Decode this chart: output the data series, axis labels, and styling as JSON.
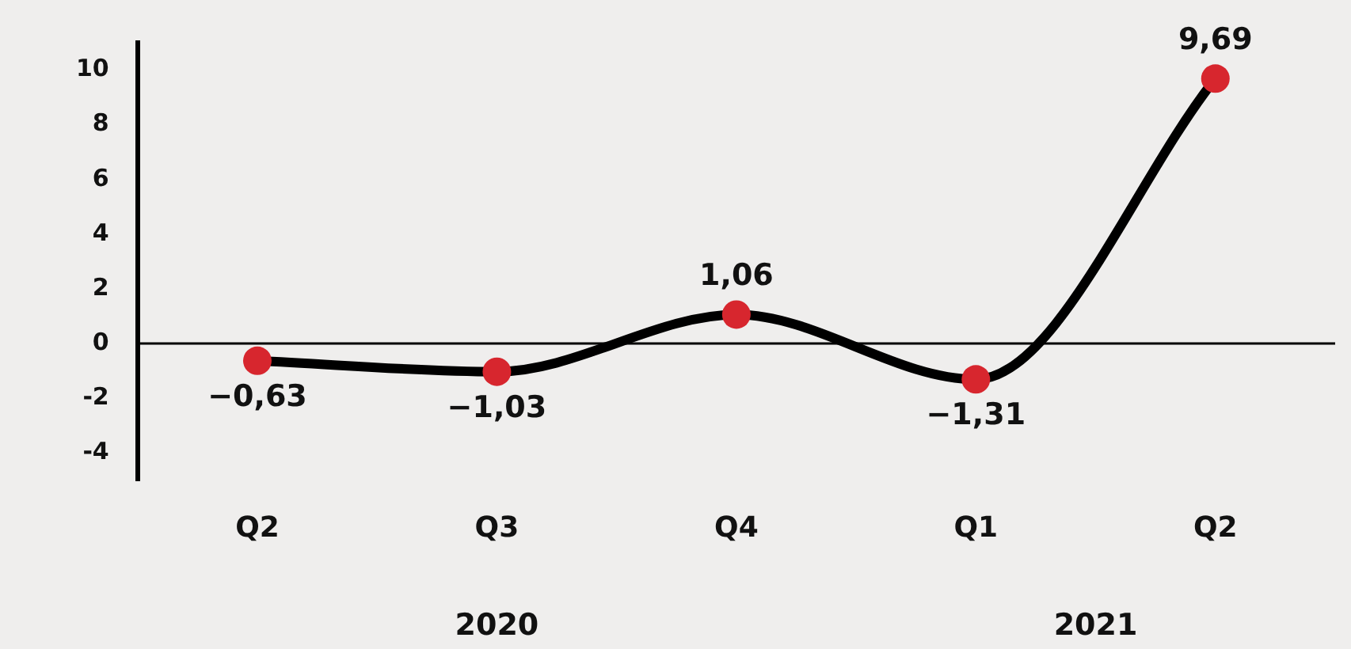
{
  "chart_data": {
    "type": "line",
    "categories": [
      "Q2",
      "Q3",
      "Q4",
      "Q1",
      "Q2"
    ],
    "series": [
      {
        "color": "#000000",
        "colors": [
          "#d7262e",
          "#d7262e",
          "#d7262e",
          "#d7262e",
          "#d7262e"
        ],
        "values": [
          -0.63,
          -1.03,
          1.06,
          -1.31,
          9.69
        ]
      }
    ],
    "value_labels": [
      "−0,63",
      "−1,03",
      "1,06",
      "−1,31",
      "9,69"
    ],
    "ylim": [
      -5,
      11
    ],
    "yticks": [
      {
        "value": -4,
        "label": "-4"
      },
      {
        "value": -2,
        "label": "-2"
      },
      0,
      2,
      4,
      6,
      8,
      10
    ],
    "ref_lines": [
      {
        "axis": "y",
        "value": 0,
        "color": "#000000"
      }
    ],
    "annotations": [
      "2020",
      "2021"
    ],
    "grid": false,
    "legend": false,
    "marker": "circle"
  }
}
